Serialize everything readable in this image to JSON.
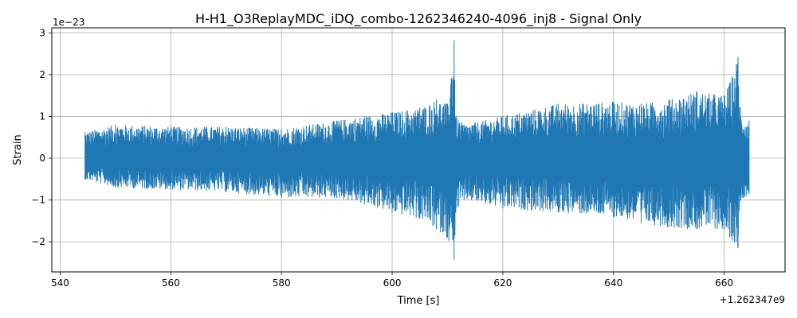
{
  "chart_data": {
    "type": "line",
    "title": "H-H1_O3ReplayMDC_iDQ_combo-1262346240-4096_inj8 - Signal Only",
    "xlabel": "Time [s]",
    "ylabel": "Strain",
    "x_offset_label": "+1.262347e9",
    "y_scale_label": "1e−23",
    "xlim": [
      538.5,
      671
    ],
    "ylim": [
      -2.72,
      3.12
    ],
    "x_ticks": [
      540,
      560,
      580,
      600,
      620,
      640,
      660
    ],
    "x_tick_labels": [
      "540",
      "560",
      "580",
      "600",
      "620",
      "640",
      "660"
    ],
    "y_ticks": [
      -2,
      -1,
      0,
      1,
      2,
      3
    ],
    "y_tick_labels": [
      "−2",
      "−1",
      "0",
      "1",
      "2",
      "3"
    ],
    "grid": true,
    "series": [
      {
        "color": "#1f77b4",
        "x_range": [
          544.5,
          664.5
        ],
        "envelope": {
          "x": [
            544.5,
            550,
            560,
            570,
            580,
            590,
            595,
            600,
            605,
            608,
            610,
            611.2,
            611.5,
            613,
            620,
            630,
            640,
            645,
            650,
            655,
            660,
            661,
            662.5,
            663,
            664.5
          ],
          "upper": [
            0.62,
            0.8,
            0.75,
            0.75,
            0.7,
            0.9,
            1.0,
            1.1,
            1.2,
            1.4,
            1.3,
            2.82,
            1.0,
            0.8,
            1.0,
            1.3,
            1.35,
            1.3,
            1.4,
            1.6,
            1.5,
            1.8,
            2.42,
            1.0,
            0.9
          ],
          "lower": [
            -0.5,
            -0.7,
            -0.75,
            -0.8,
            -0.95,
            -0.95,
            -1.1,
            -1.3,
            -1.45,
            -1.7,
            -1.9,
            -2.43,
            -1.3,
            -1.0,
            -1.2,
            -1.3,
            -1.4,
            -1.55,
            -1.65,
            -1.7,
            -1.7,
            -1.9,
            -2.15,
            -1.0,
            -0.85
          ]
        }
      }
    ]
  }
}
